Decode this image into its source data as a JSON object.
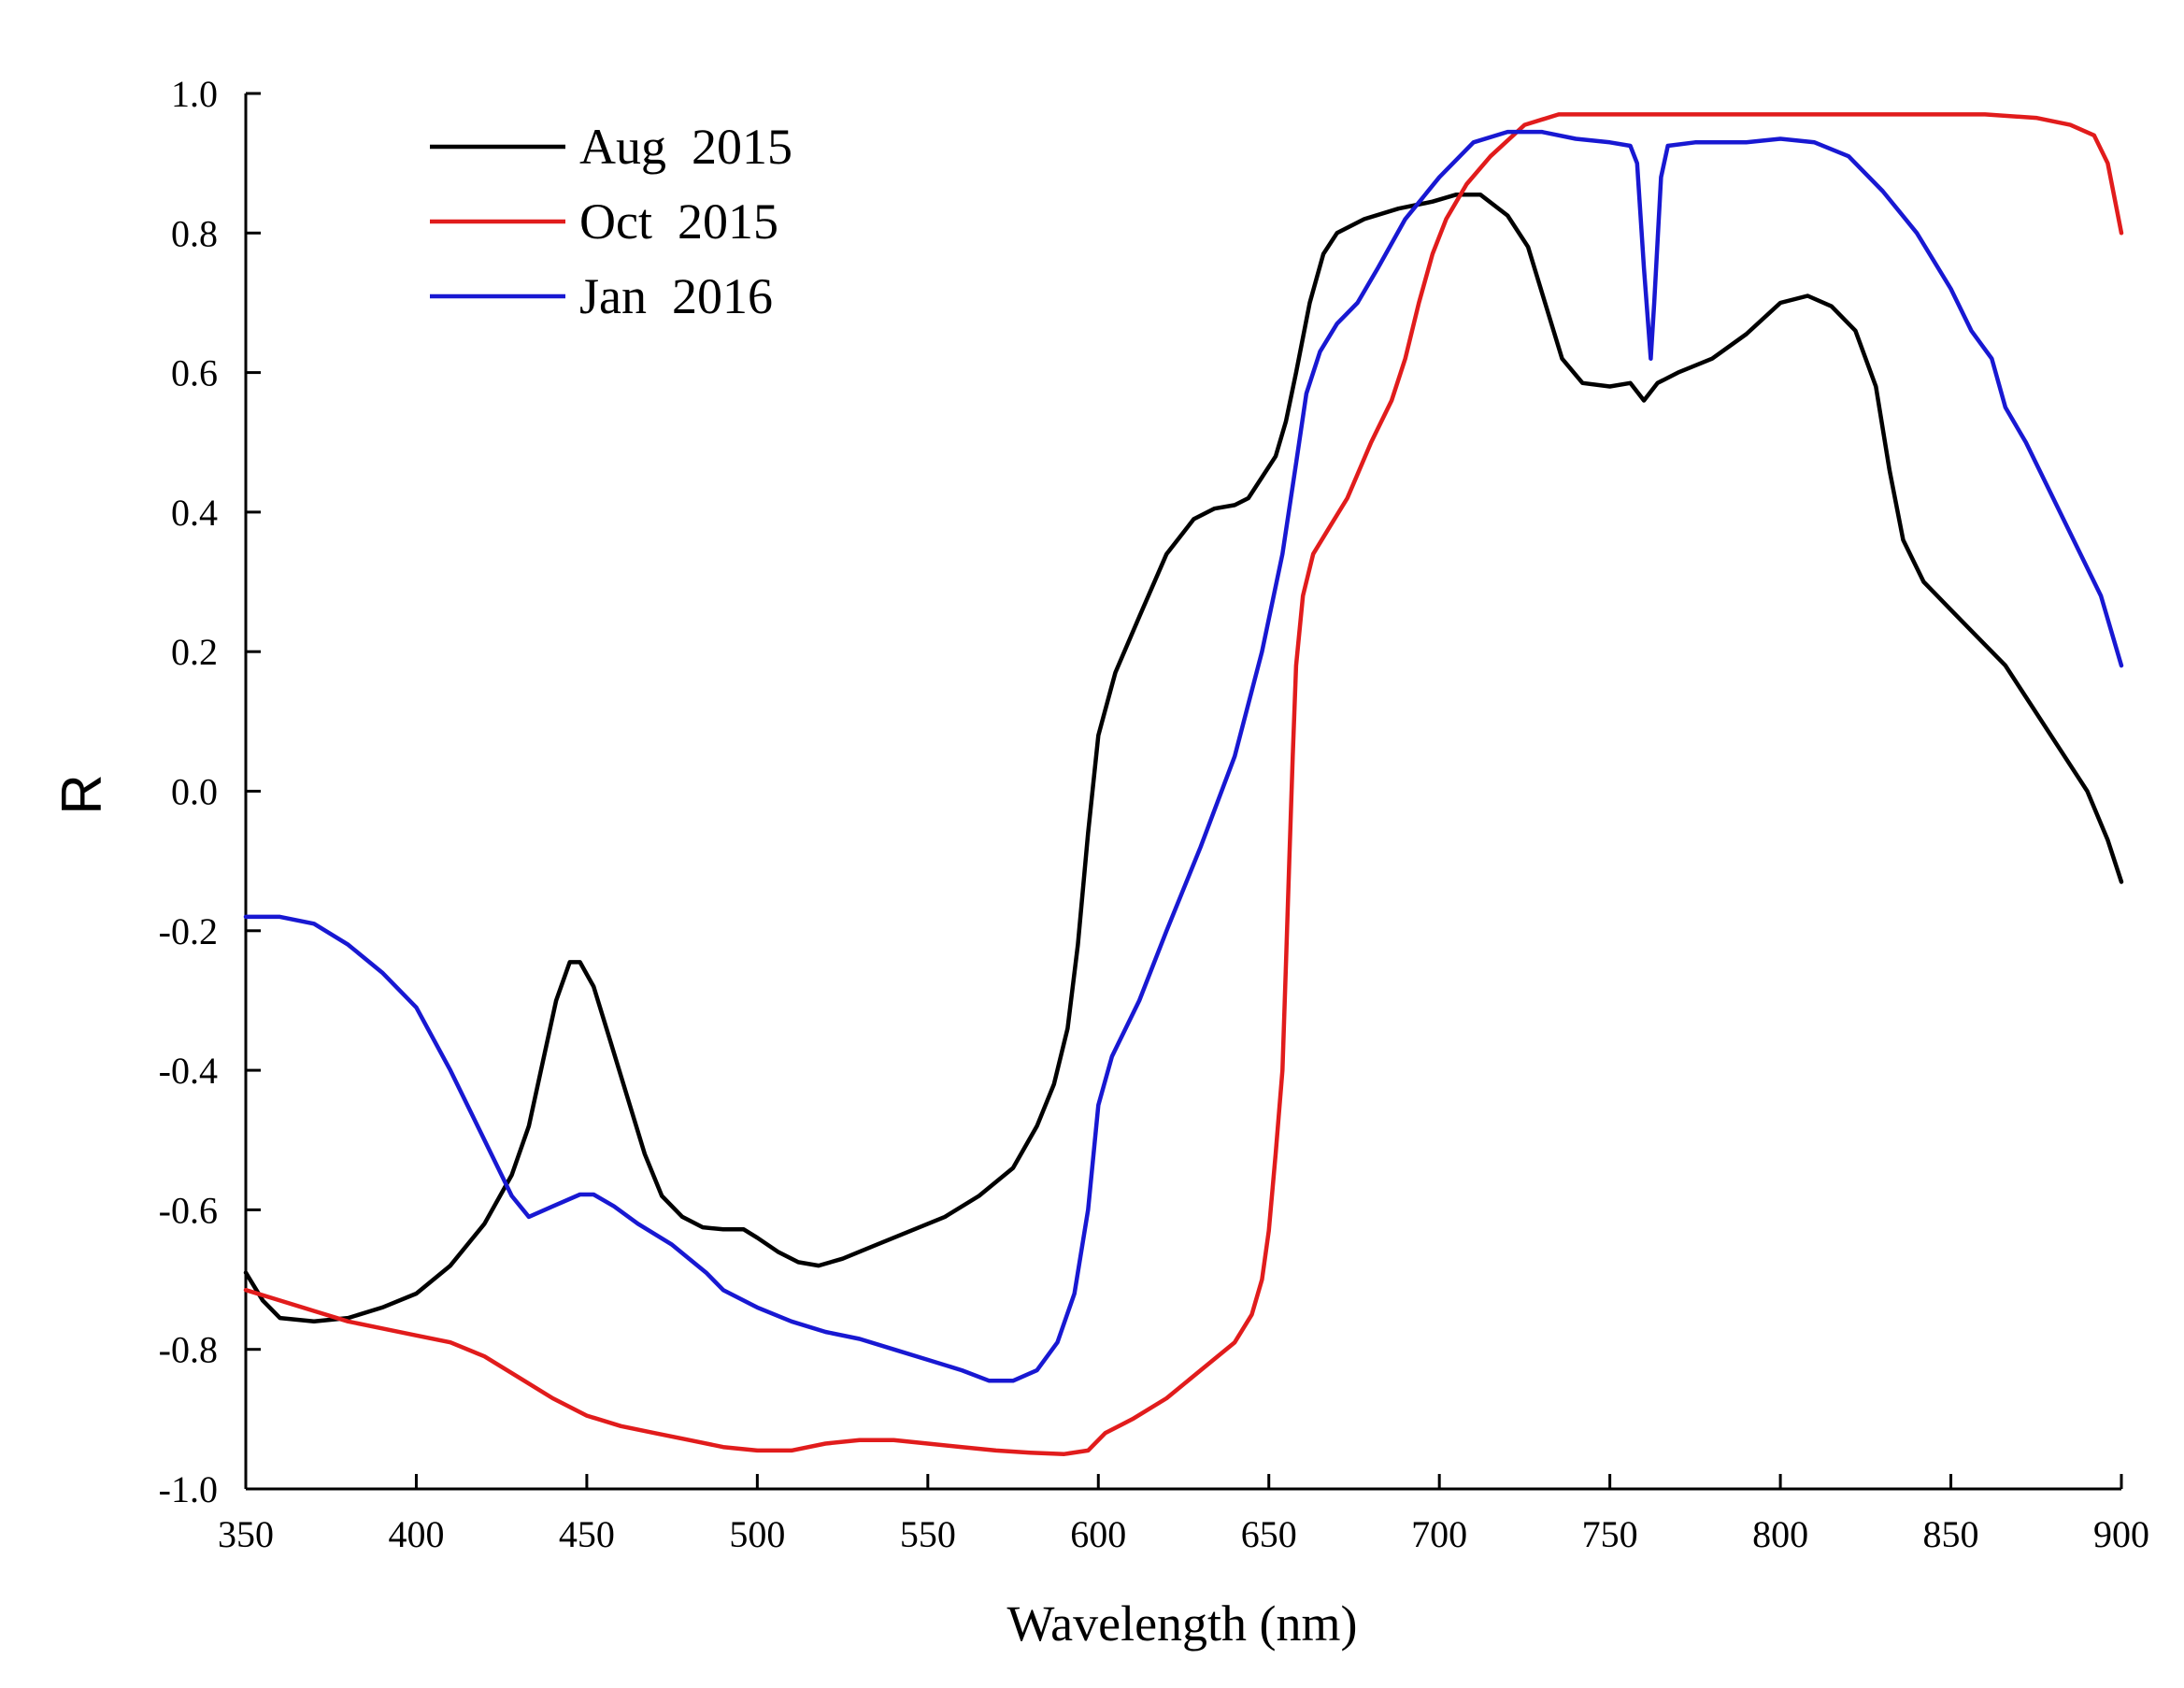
{
  "chart_data": {
    "type": "line",
    "title": "",
    "xlabel": "Wavelength (nm)",
    "ylabel": "R",
    "xlim": [
      350,
      900
    ],
    "ylim": [
      -1.0,
      1.0
    ],
    "xticks": [
      350,
      400,
      450,
      500,
      550,
      600,
      650,
      700,
      750,
      800,
      850,
      900
    ],
    "xtick_labels": [
      "350",
      "400",
      "450",
      "500",
      "550",
      "600",
      "650",
      "700",
      "750",
      "800",
      "850",
      "900"
    ],
    "yticks": [
      1.0,
      0.8,
      0.6,
      0.4,
      0.2,
      0.0,
      -0.2,
      -0.4,
      -0.6,
      -0.8,
      -1.0
    ],
    "ytick_labels": [
      "1.0",
      "0.8",
      "0.6",
      "0.4",
      "0.2",
      "0.0",
      "-0.2",
      "-0.4",
      "-0.6",
      "-0.8",
      "-1.0"
    ],
    "grid": false,
    "legend_position": "top-left",
    "series": [
      {
        "name": "Aug  2015",
        "color": "#000000",
        "points": [
          [
            350,
            -0.69
          ],
          [
            355,
            -0.73
          ],
          [
            360,
            -0.755
          ],
          [
            370,
            -0.76
          ],
          [
            380,
            -0.755
          ],
          [
            390,
            -0.74
          ],
          [
            400,
            -0.72
          ],
          [
            410,
            -0.68
          ],
          [
            420,
            -0.62
          ],
          [
            428,
            -0.55
          ],
          [
            433,
            -0.48
          ],
          [
            437,
            -0.39
          ],
          [
            441,
            -0.3
          ],
          [
            445,
            -0.245
          ],
          [
            448,
            -0.245
          ],
          [
            452,
            -0.28
          ],
          [
            457,
            -0.36
          ],
          [
            462,
            -0.44
          ],
          [
            467,
            -0.52
          ],
          [
            472,
            -0.58
          ],
          [
            478,
            -0.61
          ],
          [
            484,
            -0.625
          ],
          [
            490,
            -0.628
          ],
          [
            496,
            -0.628
          ],
          [
            500,
            -0.64
          ],
          [
            506,
            -0.66
          ],
          [
            512,
            -0.675
          ],
          [
            518,
            -0.68
          ],
          [
            525,
            -0.67
          ],
          [
            535,
            -0.65
          ],
          [
            545,
            -0.63
          ],
          [
            555,
            -0.61
          ],
          [
            565,
            -0.58
          ],
          [
            575,
            -0.54
          ],
          [
            582,
            -0.48
          ],
          [
            587,
            -0.42
          ],
          [
            591,
            -0.34
          ],
          [
            594,
            -0.22
          ],
          [
            597,
            -0.06
          ],
          [
            600,
            0.08
          ],
          [
            605,
            0.17
          ],
          [
            612,
            0.25
          ],
          [
            620,
            0.34
          ],
          [
            628,
            0.39
          ],
          [
            634,
            0.405
          ],
          [
            640,
            0.41
          ],
          [
            644,
            0.42
          ],
          [
            648,
            0.45
          ],
          [
            652,
            0.48
          ],
          [
            655,
            0.53
          ],
          [
            658,
            0.6
          ],
          [
            662,
            0.7
          ],
          [
            666,
            0.77
          ],
          [
            670,
            0.8
          ],
          [
            678,
            0.82
          ],
          [
            688,
            0.835
          ],
          [
            698,
            0.845
          ],
          [
            705,
            0.855
          ],
          [
            712,
            0.855
          ],
          [
            720,
            0.825
          ],
          [
            726,
            0.78
          ],
          [
            731,
            0.7
          ],
          [
            736,
            0.62
          ],
          [
            742,
            0.585
          ],
          [
            750,
            0.58
          ],
          [
            756,
            0.585
          ],
          [
            760,
            0.56
          ],
          [
            764,
            0.585
          ],
          [
            770,
            0.6
          ],
          [
            780,
            0.62
          ],
          [
            790,
            0.655
          ],
          [
            800,
            0.7
          ],
          [
            808,
            0.71
          ],
          [
            815,
            0.695
          ],
          [
            822,
            0.66
          ],
          [
            828,
            0.58
          ],
          [
            832,
            0.46
          ],
          [
            836,
            0.36
          ],
          [
            842,
            0.3
          ],
          [
            850,
            0.26
          ],
          [
            858,
            0.22
          ],
          [
            866,
            0.18
          ],
          [
            874,
            0.12
          ],
          [
            882,
            0.06
          ],
          [
            890,
            0.0
          ],
          [
            896,
            -0.07
          ],
          [
            900,
            -0.13
          ]
        ]
      },
      {
        "name": "Oct  2015",
        "color": "#e11c1c",
        "points": [
          [
            350,
            -0.715
          ],
          [
            360,
            -0.73
          ],
          [
            370,
            -0.745
          ],
          [
            380,
            -0.76
          ],
          [
            390,
            -0.77
          ],
          [
            400,
            -0.78
          ],
          [
            410,
            -0.79
          ],
          [
            420,
            -0.81
          ],
          [
            430,
            -0.84
          ],
          [
            440,
            -0.87
          ],
          [
            450,
            -0.895
          ],
          [
            460,
            -0.91
          ],
          [
            470,
            -0.92
          ],
          [
            480,
            -0.93
          ],
          [
            490,
            -0.94
          ],
          [
            500,
            -0.945
          ],
          [
            510,
            -0.945
          ],
          [
            520,
            -0.935
          ],
          [
            530,
            -0.93
          ],
          [
            540,
            -0.93
          ],
          [
            550,
            -0.935
          ],
          [
            560,
            -0.94
          ],
          [
            570,
            -0.945
          ],
          [
            580,
            -0.948
          ],
          [
            590,
            -0.95
          ],
          [
            597,
            -0.945
          ],
          [
            602,
            -0.92
          ],
          [
            610,
            -0.9
          ],
          [
            620,
            -0.87
          ],
          [
            630,
            -0.83
          ],
          [
            640,
            -0.79
          ],
          [
            645,
            -0.75
          ],
          [
            648,
            -0.7
          ],
          [
            650,
            -0.63
          ],
          [
            652,
            -0.52
          ],
          [
            654,
            -0.4
          ],
          [
            655,
            -0.25
          ],
          [
            656,
            -0.1
          ],
          [
            657,
            0.05
          ],
          [
            658,
            0.18
          ],
          [
            660,
            0.28
          ],
          [
            663,
            0.34
          ],
          [
            668,
            0.38
          ],
          [
            673,
            0.42
          ],
          [
            680,
            0.5
          ],
          [
            686,
            0.56
          ],
          [
            690,
            0.62
          ],
          [
            694,
            0.7
          ],
          [
            698,
            0.77
          ],
          [
            702,
            0.82
          ],
          [
            708,
            0.87
          ],
          [
            715,
            0.91
          ],
          [
            725,
            0.955
          ],
          [
            735,
            0.97
          ],
          [
            750,
            0.97
          ],
          [
            775,
            0.97
          ],
          [
            800,
            0.97
          ],
          [
            830,
            0.97
          ],
          [
            860,
            0.97
          ],
          [
            875,
            0.965
          ],
          [
            885,
            0.955
          ],
          [
            892,
            0.94
          ],
          [
            896,
            0.9
          ],
          [
            900,
            0.8
          ]
        ]
      },
      {
        "name": "Jan  2016",
        "color": "#1818d2",
        "points": [
          [
            350,
            -0.18
          ],
          [
            360,
            -0.18
          ],
          [
            370,
            -0.19
          ],
          [
            380,
            -0.22
          ],
          [
            390,
            -0.26
          ],
          [
            400,
            -0.31
          ],
          [
            410,
            -0.4
          ],
          [
            420,
            -0.5
          ],
          [
            428,
            -0.58
          ],
          [
            433,
            -0.61
          ],
          [
            440,
            -0.595
          ],
          [
            448,
            -0.578
          ],
          [
            452,
            -0.578
          ],
          [
            458,
            -0.595
          ],
          [
            465,
            -0.62
          ],
          [
            475,
            -0.65
          ],
          [
            480,
            -0.67
          ],
          [
            485,
            -0.69
          ],
          [
            490,
            -0.715
          ],
          [
            500,
            -0.74
          ],
          [
            510,
            -0.76
          ],
          [
            520,
            -0.775
          ],
          [
            530,
            -0.785
          ],
          [
            540,
            -0.8
          ],
          [
            550,
            -0.815
          ],
          [
            560,
            -0.83
          ],
          [
            568,
            -0.845
          ],
          [
            575,
            -0.845
          ],
          [
            582,
            -0.83
          ],
          [
            588,
            -0.79
          ],
          [
            593,
            -0.72
          ],
          [
            597,
            -0.6
          ],
          [
            600,
            -0.45
          ],
          [
            604,
            -0.38
          ],
          [
            612,
            -0.3
          ],
          [
            620,
            -0.2
          ],
          [
            630,
            -0.08
          ],
          [
            640,
            0.05
          ],
          [
            648,
            0.2
          ],
          [
            654,
            0.34
          ],
          [
            658,
            0.47
          ],
          [
            661,
            0.57
          ],
          [
            665,
            0.63
          ],
          [
            670,
            0.67
          ],
          [
            676,
            0.7
          ],
          [
            682,
            0.75
          ],
          [
            690,
            0.82
          ],
          [
            700,
            0.88
          ],
          [
            710,
            0.93
          ],
          [
            720,
            0.945
          ],
          [
            730,
            0.945
          ],
          [
            740,
            0.935
          ],
          [
            750,
            0.93
          ],
          [
            756,
            0.925
          ],
          [
            758,
            0.9
          ],
          [
            760,
            0.75
          ],
          [
            762,
            0.62
          ],
          [
            763,
            0.7
          ],
          [
            765,
            0.88
          ],
          [
            767,
            0.925
          ],
          [
            775,
            0.93
          ],
          [
            790,
            0.93
          ],
          [
            800,
            0.935
          ],
          [
            810,
            0.93
          ],
          [
            820,
            0.91
          ],
          [
            830,
            0.86
          ],
          [
            840,
            0.8
          ],
          [
            850,
            0.72
          ],
          [
            856,
            0.66
          ],
          [
            862,
            0.62
          ],
          [
            866,
            0.55
          ],
          [
            872,
            0.5
          ],
          [
            880,
            0.42
          ],
          [
            888,
            0.34
          ],
          [
            894,
            0.28
          ],
          [
            900,
            0.18
          ]
        ]
      }
    ]
  }
}
